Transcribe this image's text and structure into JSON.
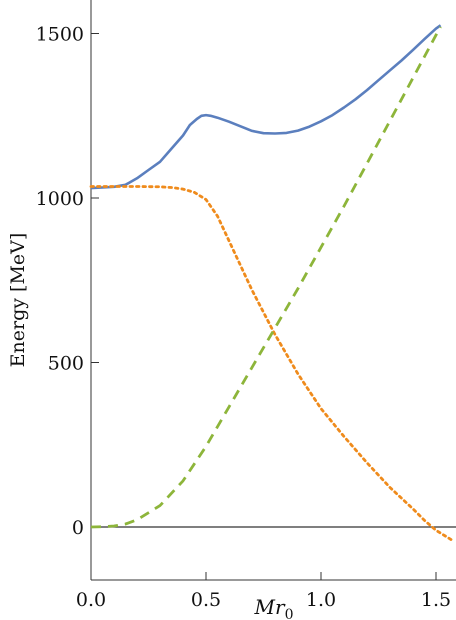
{
  "chart_data": {
    "type": "line",
    "title": "",
    "ylabel": "Energy [MeV]",
    "xlabel_main": "Mr",
    "xlabel_subscript": "0",
    "xlim": [
      0,
      1.57
    ],
    "ylim": [
      -100,
      1600
    ],
    "x_ticks": [
      {
        "value": 0,
        "label": "0.0"
      },
      {
        "value": 0.5,
        "label": "0.5"
      },
      {
        "value": 1.0,
        "label": "1.0"
      },
      {
        "value": 1.5,
        "label": "1.5"
      }
    ],
    "y_ticks": [
      {
        "value": 0,
        "label": "0"
      },
      {
        "value": 500,
        "label": "500"
      },
      {
        "value": 1000,
        "label": "1000"
      },
      {
        "value": 1500,
        "label": "1500"
      }
    ],
    "grid": false,
    "series": [
      {
        "color": "#5b7fbe",
        "style": "solid",
        "x": [
          0,
          0.05,
          0.1,
          0.15,
          0.2,
          0.25,
          0.3,
          0.35,
          0.4,
          0.43,
          0.46,
          0.48,
          0.5,
          0.52,
          0.55,
          0.6,
          0.65,
          0.7,
          0.75,
          0.8,
          0.85,
          0.9,
          0.95,
          1.0,
          1.05,
          1.1,
          1.15,
          1.2,
          1.25,
          1.3,
          1.35,
          1.4,
          1.45,
          1.5,
          1.52
        ],
        "values": [
          1030,
          1032,
          1034,
          1040,
          1060,
          1085,
          1110,
          1150,
          1190,
          1222,
          1240,
          1250,
          1252,
          1250,
          1244,
          1232,
          1218,
          1204,
          1197,
          1196,
          1198,
          1205,
          1217,
          1233,
          1252,
          1275,
          1300,
          1328,
          1358,
          1388,
          1418,
          1450,
          1483,
          1515,
          1525
        ]
      },
      {
        "color": "#ef8b1c",
        "style": "dotted",
        "x": [
          0,
          0.1,
          0.2,
          0.3,
          0.35,
          0.4,
          0.45,
          0.5,
          0.55,
          0.6,
          0.7,
          0.8,
          0.9,
          1.0,
          1.1,
          1.2,
          1.3,
          1.4,
          1.45,
          1.5,
          1.57
        ],
        "values": [
          1035,
          1035,
          1035,
          1034,
          1032,
          1027,
          1017,
          995,
          945,
          870,
          720,
          585,
          465,
          360,
          275,
          195,
          120,
          55,
          20,
          -10,
          -40
        ]
      },
      {
        "color": "#8db53a",
        "style": "dashed",
        "x": [
          0,
          0.05,
          0.1,
          0.15,
          0.2,
          0.3,
          0.4,
          0.5,
          0.6,
          0.7,
          0.8,
          0.9,
          1.0,
          1.1,
          1.2,
          1.3,
          1.4,
          1.5,
          1.52
        ],
        "values": [
          0,
          1,
          3,
          9,
          22,
          65,
          140,
          245,
          365,
          485,
          605,
          725,
          850,
          975,
          1105,
          1235,
          1365,
          1495,
          1520
        ]
      }
    ],
    "zero_line": true
  }
}
